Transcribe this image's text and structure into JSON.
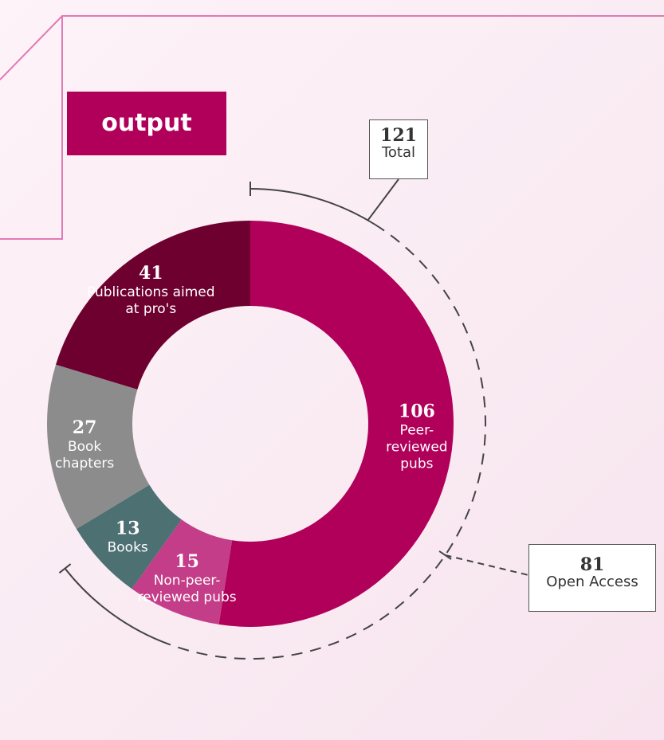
{
  "chart_data": {
    "type": "donut",
    "title": "output",
    "categories": [
      "Peer-reviewed pubs",
      "Non-peer-reviewed pubs",
      "Books",
      "Book chapters",
      "Publications aimed at pro's"
    ],
    "values": [
      106,
      15,
      13,
      27,
      41
    ],
    "colors": [
      "#b0005a",
      "#c43d88",
      "#4d7073",
      "#8c8c8c",
      "#6e0030"
    ],
    "annotations": [
      {
        "value": 121,
        "label": "Total"
      },
      {
        "value": 81,
        "label": "Open Access"
      }
    ]
  }
}
